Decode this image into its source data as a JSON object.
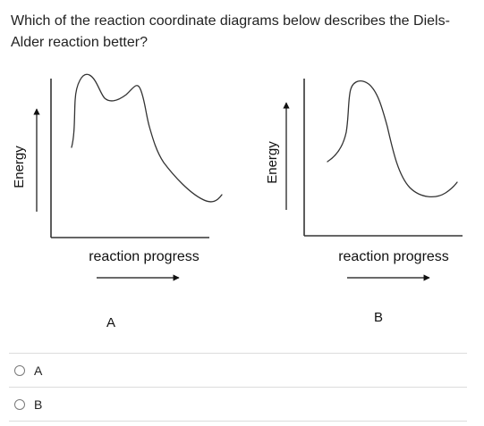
{
  "question": {
    "text": "Which of the reaction coordinate diagrams below describes the Diels-Alder reaction better?"
  },
  "diagrams": [
    {
      "id": "A",
      "y_axis_label": "Energy",
      "x_axis_label": "reaction progress",
      "caption": "A"
    },
    {
      "id": "B",
      "y_axis_label": "Energy",
      "x_axis_label": "reaction progress",
      "caption": "B"
    }
  ],
  "options": [
    {
      "label": "A",
      "selected": false
    },
    {
      "label": "B",
      "selected": false
    }
  ]
}
